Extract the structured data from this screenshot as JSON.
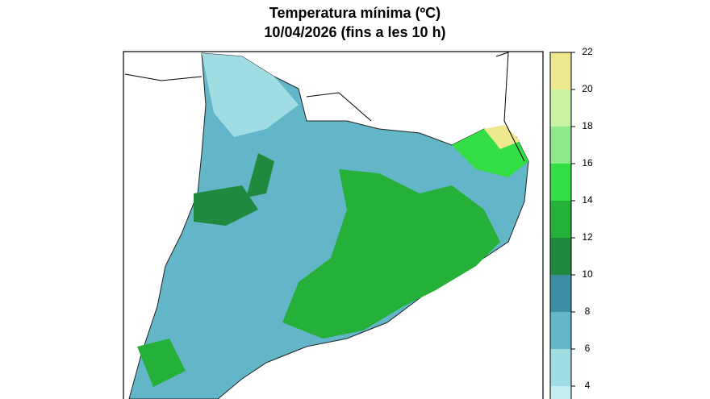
{
  "map": {
    "title": "Temperatura mínima (ºC)",
    "subtitle": "10/04/2026 (fins a les 10 h)"
  },
  "legend": {
    "ticks": [
      4,
      6,
      8,
      10,
      12,
      14,
      16,
      18,
      20,
      22
    ],
    "colors": [
      "#9fdde3",
      "#62b6c8",
      "#3c8fa2",
      "#1f8a3e",
      "#25b03a",
      "#33dd44",
      "#8ee88c",
      "#c9f2a2",
      "#eee88e"
    ]
  }
}
